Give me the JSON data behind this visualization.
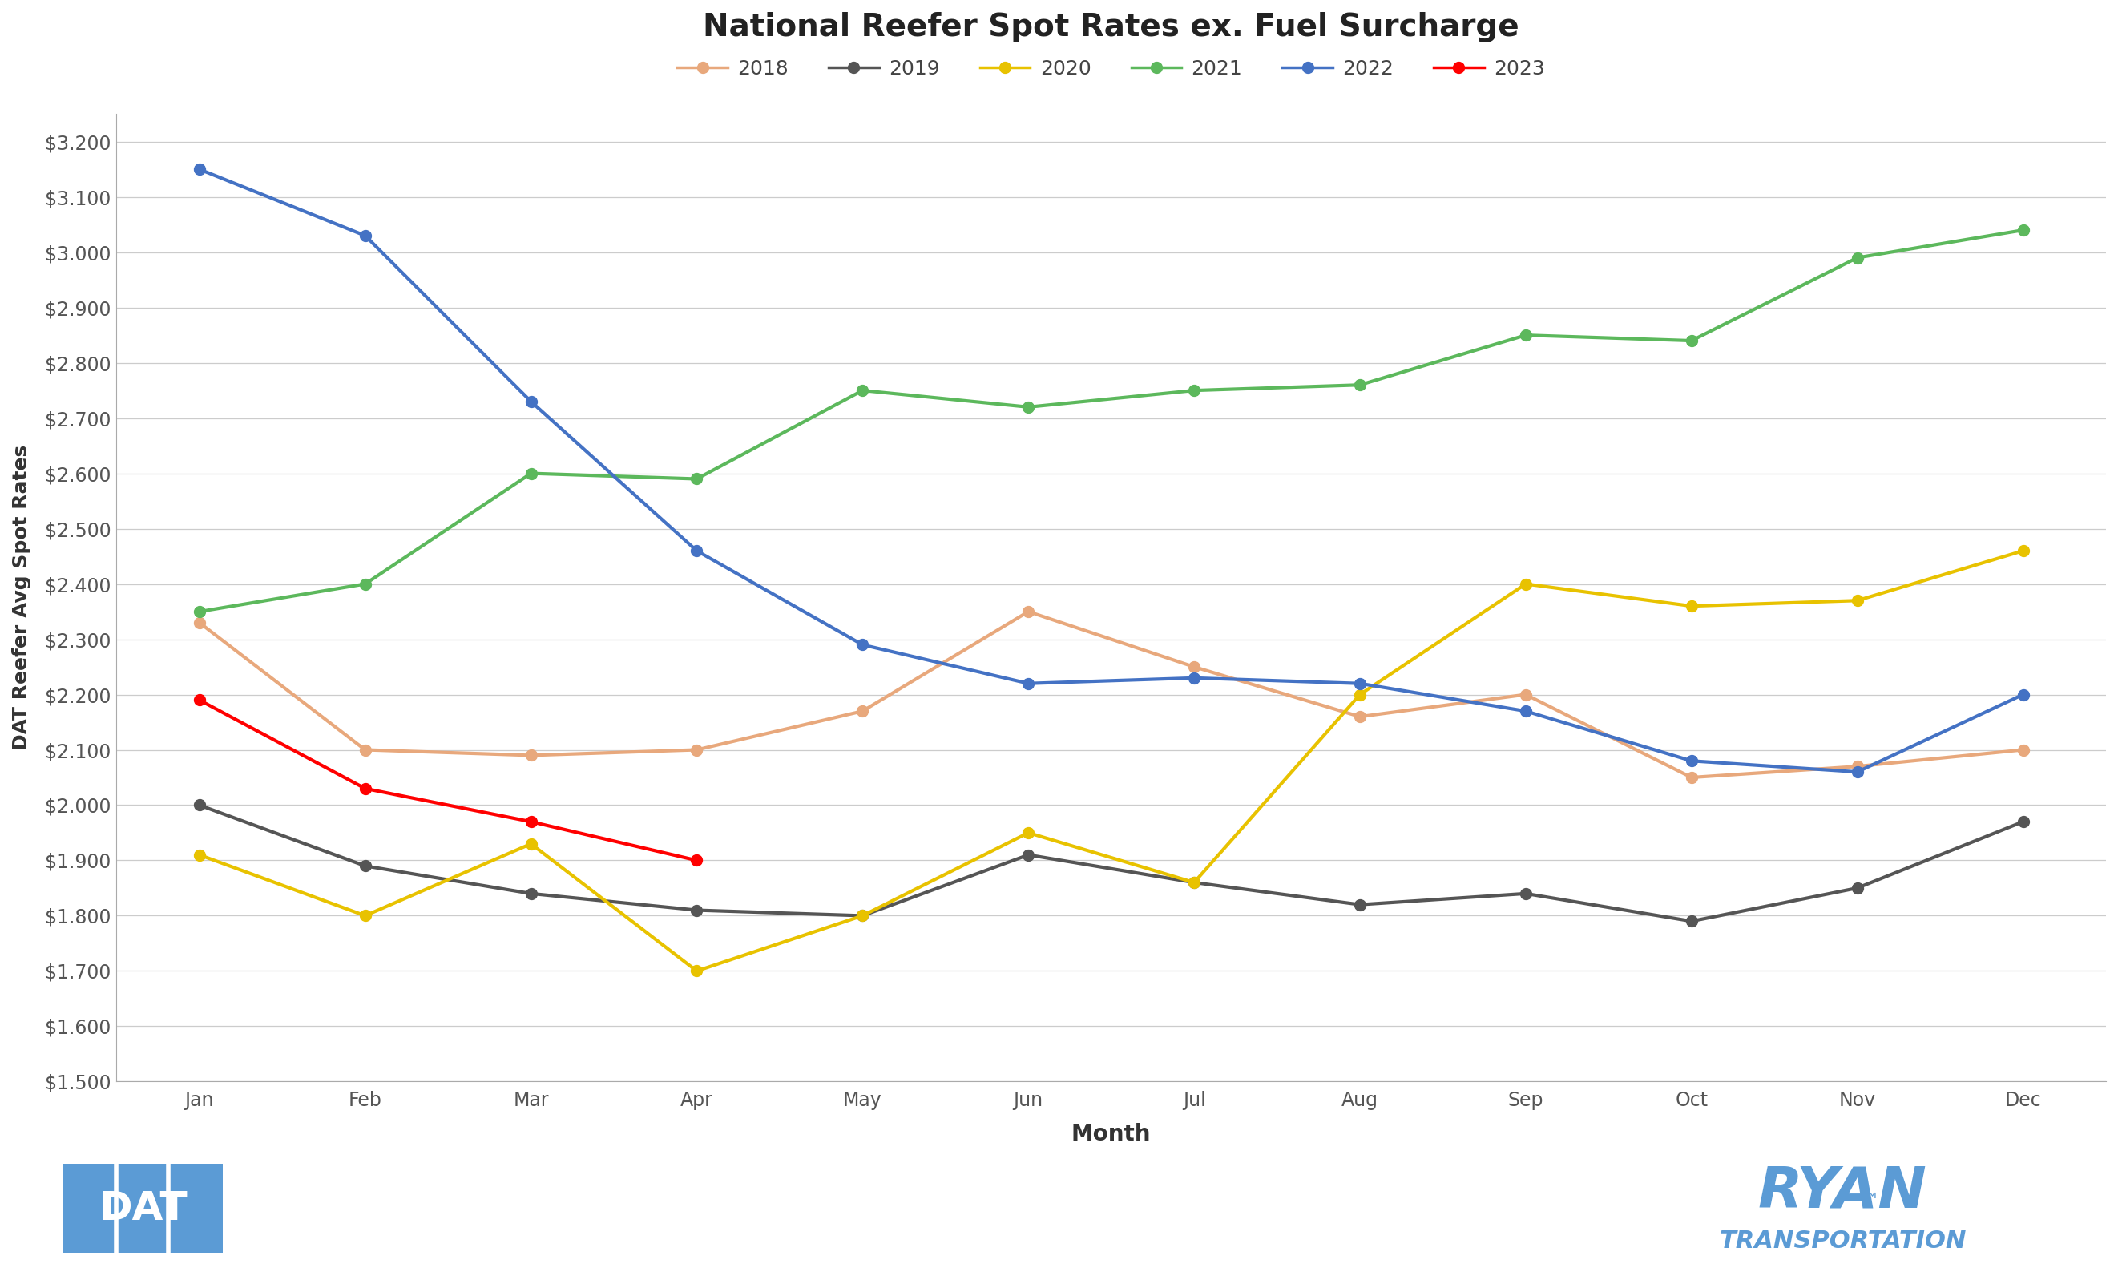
{
  "title": "National Reefer Spot Rates ex. Fuel Surcharge",
  "xlabel": "Month",
  "ylabel": "DAT Reefer Avg Spot Rates",
  "months": [
    "Jan",
    "Feb",
    "Mar",
    "Apr",
    "May",
    "Jun",
    "Jul",
    "Aug",
    "Sep",
    "Oct",
    "Nov",
    "Dec"
  ],
  "series_order": [
    "2018",
    "2019",
    "2020",
    "2021",
    "2022",
    "2023"
  ],
  "series": {
    "2018": {
      "values": [
        2.33,
        2.1,
        2.09,
        2.1,
        2.17,
        2.35,
        2.25,
        2.16,
        2.2,
        2.05,
        2.07,
        2.1
      ],
      "color": "#E8A87C"
    },
    "2019": {
      "values": [
        2.0,
        1.89,
        1.84,
        1.81,
        1.8,
        1.91,
        1.86,
        1.82,
        1.84,
        1.79,
        1.85,
        1.97
      ],
      "color": "#555555"
    },
    "2020": {
      "values": [
        1.91,
        1.8,
        1.93,
        1.7,
        1.8,
        1.95,
        1.86,
        2.2,
        2.4,
        2.36,
        2.37,
        2.46
      ],
      "color": "#E8C200"
    },
    "2021": {
      "values": [
        2.35,
        2.4,
        2.6,
        2.59,
        2.75,
        2.72,
        2.75,
        2.76,
        2.85,
        2.84,
        2.99,
        3.04
      ],
      "color": "#5CB85C"
    },
    "2022": {
      "values": [
        3.15,
        3.03,
        2.73,
        2.46,
        2.29,
        2.22,
        2.23,
        2.22,
        2.17,
        2.08,
        2.06,
        2.2
      ],
      "color": "#4472C4"
    },
    "2023": {
      "values": [
        2.19,
        2.03,
        1.97,
        1.9,
        null,
        null,
        null,
        null,
        null,
        null,
        null,
        null
      ],
      "color": "#FF0000"
    }
  },
  "ylim": [
    1.5,
    3.25
  ],
  "ytick_values": [
    1.5,
    1.6,
    1.7,
    1.8,
    1.9,
    2.0,
    2.1,
    2.2,
    2.3,
    2.4,
    2.5,
    2.6,
    2.7,
    2.8,
    2.9,
    3.0,
    3.1,
    3.2
  ],
  "background_color": "#FFFFFF",
  "grid_color": "#CCCCCC",
  "title_fontsize": 28,
  "axis_label_fontsize": 20,
  "tick_fontsize": 17,
  "legend_fontsize": 18,
  "line_width": 3.0,
  "marker_size": 10,
  "dat_blue": "#5B9BD5",
  "ryan_blue": "#5B9BD5"
}
